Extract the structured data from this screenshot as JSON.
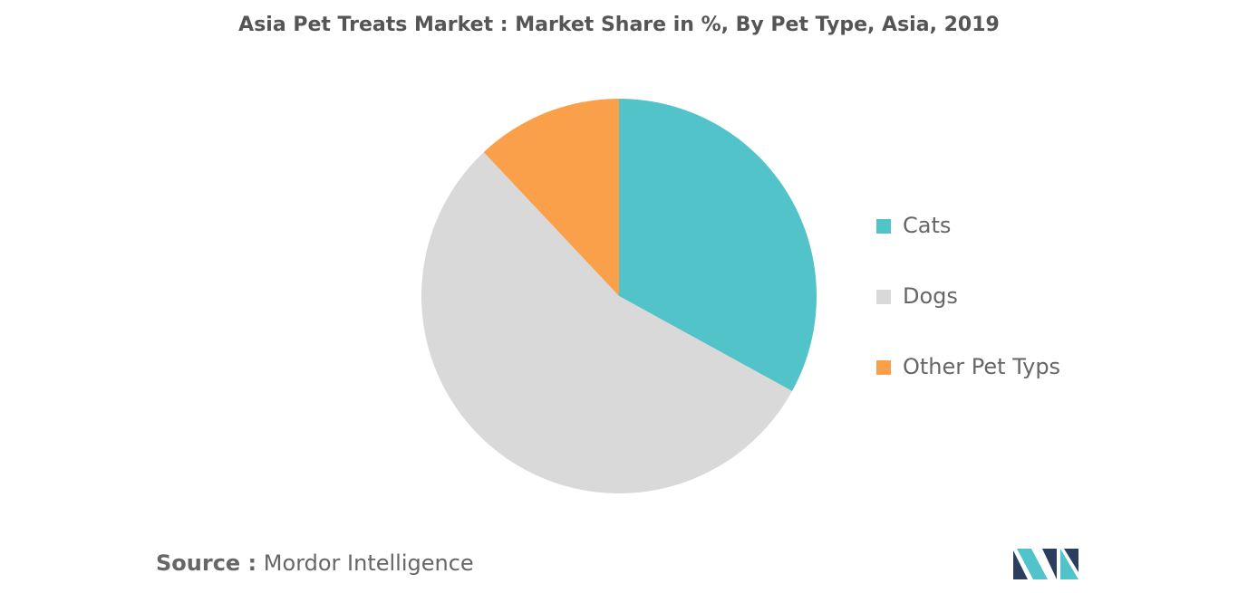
{
  "chart_data": {
    "type": "pie",
    "title": "Asia Pet Treats Market : Market Share in %, By Pet Type, Asia, 2019",
    "categories": [
      "Cats",
      "Dogs",
      "Other Pet Typs"
    ],
    "values": [
      33,
      55,
      12
    ],
    "colors": [
      "#52c3c8",
      "#d9d9d9",
      "#fba04a"
    ],
    "legend": "right",
    "source_label": "Source :",
    "source": "Mordor Intelligence"
  }
}
